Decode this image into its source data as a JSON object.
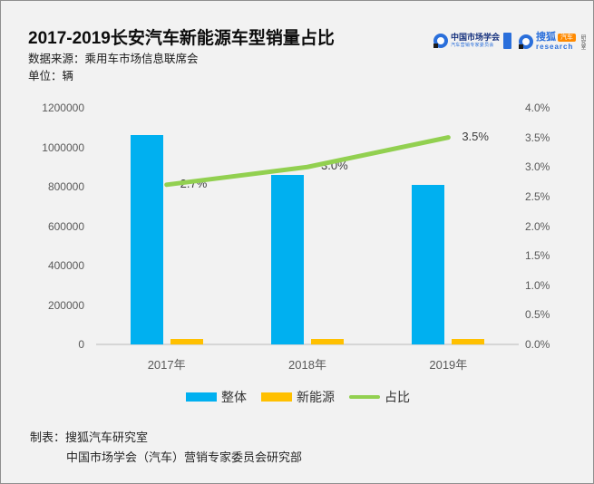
{
  "header": {
    "source_label": "数据来源：乘用车市场信息联席会",
    "unit_label": "单位：辆"
  },
  "logos": {
    "market_society": {
      "title": "中国市场学会",
      "subtitle": "汽车营销专家委员会"
    },
    "sohu": {
      "name": "搜狐",
      "badge": "汽车",
      "sub": "research",
      "vertical": "研究室"
    }
  },
  "chart_data": {
    "type": "bar",
    "title": "2017-2019长安汽车新能源车型销量占比",
    "categories": [
      "2017年",
      "2018年",
      "2019年"
    ],
    "series": [
      {
        "name": "整体",
        "type": "bar",
        "color": "#00B0F0",
        "axis": "left",
        "values": [
          1060000,
          860000,
          810000
        ]
      },
      {
        "name": "新能源",
        "type": "bar",
        "color": "#FFC000",
        "axis": "left",
        "values": [
          28600,
          25800,
          28400
        ]
      },
      {
        "name": "占比",
        "type": "line",
        "color": "#92D050",
        "axis": "right",
        "values": [
          2.7,
          3.0,
          3.5
        ],
        "labels": [
          "2.7%",
          "3.0%",
          "3.5%"
        ]
      }
    ],
    "left_axis": {
      "min": 0,
      "max": 1200000,
      "ticks": [
        "1200000",
        "1000000",
        "800000",
        "600000",
        "400000",
        "200000",
        "0"
      ]
    },
    "right_axis": {
      "min": 0,
      "max": 4.0,
      "ticks": [
        "4.0%",
        "3.5%",
        "3.0%",
        "2.5%",
        "2.0%",
        "1.5%",
        "1.0%",
        "0.5%",
        "0.0%"
      ]
    },
    "grid": false,
    "legend_position": "bottom"
  },
  "footer": {
    "line1": "制表：搜狐汽车研究室",
    "line2": "中国市场学会（汽车）营销专家委员会研究部"
  }
}
